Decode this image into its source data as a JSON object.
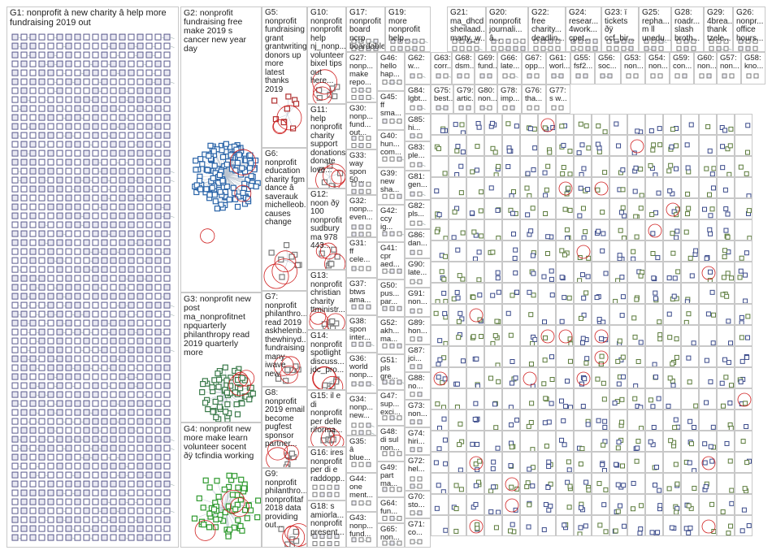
{
  "colors": {
    "G1": "#5a5a8c",
    "G2": "#2a64a8",
    "G3": "#3a7a4a",
    "G4": "#2f9a2f",
    "G5": "#b03030",
    "G6": "#7a7a7a",
    "accent_red": "#d02020",
    "node_dark": "#2b2b55"
  },
  "groups": [
    {
      "id": "G1",
      "label": "G1: nonprofit à new charity â help more\nfundraising 2019 out",
      "color": "#5a5a8c"
    },
    {
      "id": "G2",
      "label": "G2: nonprofit\nfundraising free\nmake 2019 s\ncancer new year\nday",
      "color": "#2a64a8"
    },
    {
      "id": "G3",
      "label": "G3: nonprofit new\npost\nma_nonprofitnet\nnpquarterly\nphilanthropy read\n2019 quarterly\nmore",
      "color": "#3a7a4a"
    },
    {
      "id": "G4",
      "label": "G4: nonprofit new\nmore make learn\nvolunteer socent\nðÿ tcfindia working",
      "color": "#2f9a2f"
    },
    {
      "id": "G5",
      "label": "G5:\nnonprofit\nfundraising\ngrant\ngrantwriting\ndonors up\nmore latest\nthanks 2019",
      "color": "#b03030"
    },
    {
      "id": "G6",
      "label": "G6:\nnonprofit\neducation\ncharity fgm\ndance â\nsaverauk\nmichelleob...\ncauses\nchange",
      "color": "#7a7a7a"
    },
    {
      "id": "G7",
      "label": "G7:\nnonprofit\nphilanthro...\nread 2019\naskhelenb...\nthewhinyd...\nfundraising\nmany iwave\nnew",
      "color": "#7a7a7a"
    },
    {
      "id": "G8",
      "label": "G8:\nnonprofit\n2019 email\nbecome\npugfest\nsponsor\npartner...",
      "color": "#7a7a7a"
    },
    {
      "id": "G9",
      "label": "G9:\nnonprofit\nphilanthro...\nnonprofitaf\n2018 data\nproviding\nout...",
      "color": "#7a7a7a"
    },
    {
      "id": "G10",
      "label": "G10:\nnonprofit\nnonprofit\nhelp\nnj_nonp...\nvolunteer\nbixel tips\nout here...",
      "color": "#7a7a7a"
    },
    {
      "id": "G11",
      "label": "G11: help\nnonprofit\ncharity\nsupport\ndonations\ndonate\nlove...",
      "color": "#7a7a7a"
    },
    {
      "id": "G12",
      "label": "G12:\nnoon ðÿ\n100\nnonprofit\nsudbury\nma 978\n443...",
      "color": "#7a7a7a"
    },
    {
      "id": "G13",
      "label": "G13:\nnonprofit\nchristian\ncharity\nttministr...",
      "color": "#7a7a7a"
    },
    {
      "id": "G14",
      "label": "G14:\nnonprofit\nspotlight\ndiscuss...\njdc_pro...",
      "color": "#7a7a7a"
    },
    {
      "id": "G15",
      "label": "G15: il e\ndi\nnonprofit\nper delle\nriforma...",
      "color": "#7a7a7a"
    },
    {
      "id": "G16",
      "label": "G16: ires\nnonprofit\nper di e\nraddopp...",
      "color": "#7a7a7a"
    },
    {
      "id": "G17",
      "label": "G17:\nnonprofit\nboard ncrp\nboardable...",
      "color": "#7a7a7a"
    },
    {
      "id": "G18",
      "label": "G18: s\namiorla...\nnonprofit\npresent...",
      "color": "#7a7a7a"
    },
    {
      "id": "G19",
      "label": "G19:\nmore\nnonprofit\nhelp...",
      "color": "#7a7a7a"
    },
    {
      "id": "G20",
      "label": "G20:\nnonprofit\njournali...\nâ...",
      "color": "#7a7a7a"
    },
    {
      "id": "G21",
      "label": "G21:\nma_dhcd\nsheilaad...\nmarty_w...",
      "color": "#7a7a7a"
    },
    {
      "id": "G22",
      "label": "G22:\nfree\ncharity...\ndeadlin...",
      "color": "#7a7a7a"
    },
    {
      "id": "G23",
      "label": "G23: ï\ntickets\nðÿ\nccf_bir...",
      "color": "#7a7a7a"
    },
    {
      "id": "G24",
      "label": "G24:\nresear...\n4work...\ncpet...",
      "color": "#7a7a7a"
    },
    {
      "id": "G25",
      "label": "G25:\nrepha...\nm ll\nunedu...",
      "color": "#7a7a7a"
    },
    {
      "id": "G26",
      "label": "G26:\nnonpr...\noffice\nhours...",
      "color": "#7a7a7a"
    },
    {
      "id": "G27",
      "label": "G27:\nnonp...\nmake\nrepo...",
      "color": "#7a7a7a"
    },
    {
      "id": "G28",
      "label": "G28:\nroadr...\nslash\nbroth...",
      "color": "#7a7a7a"
    },
    {
      "id": "G29",
      "label": "G29:\n4brea...\nthank\ntzele...",
      "color": "#7a7a7a"
    },
    {
      "id": "G30",
      "label": "G30:\nnonp...\nfund...\nout...",
      "color": "#7a7a7a"
    },
    {
      "id": "G31",
      "label": "G31:\nff\ncele...",
      "color": "#7a7a7a"
    },
    {
      "id": "G32",
      "label": "G32:\nnonp...\neven...",
      "color": "#7a7a7a"
    },
    {
      "id": "G33",
      "label": "G33:\nway\nspon\n50...",
      "color": "#7a7a7a"
    },
    {
      "id": "G34",
      "label": "G34:\nnonp...\nnew...",
      "color": "#7a7a7a"
    },
    {
      "id": "G35",
      "label": "G35:\nâ\nblue...",
      "color": "#7a7a7a"
    },
    {
      "id": "G36",
      "label": "G36:\nworld\nnonp...",
      "color": "#7a7a7a"
    },
    {
      "id": "G37",
      "label": "G37:\nbtws\nama...",
      "color": "#7a7a7a"
    },
    {
      "id": "G38",
      "label": "G38:\nspon\ninter...",
      "color": "#7a7a7a"
    },
    {
      "id": "G39",
      "label": "G39:\nnew\nsha...",
      "color": "#7a7a7a"
    },
    {
      "id": "G40",
      "label": "G40:\nhun...\ncom...",
      "color": "#7a7a7a"
    },
    {
      "id": "G41",
      "label": "G41:\ncpr\naed...",
      "color": "#7a7a7a"
    },
    {
      "id": "G42",
      "label": "G42:\nccy\nig...",
      "color": "#7a7a7a"
    },
    {
      "id": "G43",
      "label": "G43:\nnonp...\nfund...",
      "color": "#7a7a7a"
    },
    {
      "id": "G44",
      "label": "G44:\none\nment...",
      "color": "#7a7a7a"
    },
    {
      "id": "G45",
      "label": "G45:\nff\nsma...",
      "color": "#7a7a7a"
    },
    {
      "id": "G46",
      "label": "G46:\nhello\nhap...",
      "color": "#7a7a7a"
    },
    {
      "id": "G47",
      "label": "G47:\nsup...\nexci...",
      "color": "#7a7a7a"
    },
    {
      "id": "G48",
      "label": "G48:\ndi sul\nnon...",
      "color": "#7a7a7a"
    },
    {
      "id": "G49",
      "label": "G49:\npart\nma...",
      "color": "#7a7a7a"
    },
    {
      "id": "G50",
      "label": "G50:\npus...\npar...",
      "color": "#7a7a7a"
    },
    {
      "id": "G51",
      "label": "G51:\npls\ngre...",
      "color": "#7a7a7a"
    },
    {
      "id": "G52",
      "label": "G52:\nakh...\nma...",
      "color": "#7a7a7a"
    },
    {
      "id": "G53",
      "label": "G53:\nnon...",
      "color": "#7a7a7a"
    },
    {
      "id": "G54",
      "label": "G54:\nnon...",
      "color": "#7a7a7a"
    },
    {
      "id": "G55",
      "label": "G55:\nfsf2...",
      "color": "#7a7a7a"
    },
    {
      "id": "G56",
      "label": "G56:\nsoc...",
      "color": "#7a7a7a"
    },
    {
      "id": "G57",
      "label": "G57:\nnon...",
      "color": "#7a7a7a"
    },
    {
      "id": "G58",
      "label": "G58:\nkno...",
      "color": "#7a7a7a"
    },
    {
      "id": "G59",
      "label": "G59:\ncon...",
      "color": "#7a7a7a"
    },
    {
      "id": "G60",
      "label": "G60:\nnon...",
      "color": "#7a7a7a"
    },
    {
      "id": "G61",
      "label": "G61:\nworl...",
      "color": "#7a7a7a"
    },
    {
      "id": "G62",
      "label": "G62:\nw...",
      "color": "#7a7a7a"
    },
    {
      "id": "G63",
      "label": "G63:\ncorr...",
      "color": "#7a7a7a"
    },
    {
      "id": "G64",
      "label": "G64:\nfun...",
      "color": "#7a7a7a"
    },
    {
      "id": "G65",
      "label": "G65:\nnon...",
      "color": "#7a7a7a"
    },
    {
      "id": "G66",
      "label": "G66:\nlate...",
      "color": "#7a7a7a"
    },
    {
      "id": "G67",
      "label": "G67:\nopp...",
      "color": "#7a7a7a"
    },
    {
      "id": "G68",
      "label": "G68:\ndsm...",
      "color": "#7a7a7a"
    },
    {
      "id": "G69",
      "label": "G69:\nfund...",
      "color": "#7a7a7a"
    },
    {
      "id": "G70",
      "label": "G70:\nsto...",
      "color": "#7a7a7a"
    },
    {
      "id": "G71",
      "label": "G71:\nco...",
      "color": "#7a7a7a"
    },
    {
      "id": "G72",
      "label": "G72:\nhel...",
      "color": "#7a7a7a"
    },
    {
      "id": "G73",
      "label": "G73:\nnon...",
      "color": "#7a7a7a"
    },
    {
      "id": "G74",
      "label": "G74:\nhiri...",
      "color": "#7a7a7a"
    },
    {
      "id": "G75",
      "label": "G75:\nbest...",
      "color": "#7a7a7a"
    },
    {
      "id": "G76",
      "label": "G76:\ntha...",
      "color": "#7a7a7a"
    },
    {
      "id": "G77",
      "label": "G77:\ns w...",
      "color": "#7a7a7a"
    },
    {
      "id": "G78",
      "label": "G78:\nimp...",
      "color": "#7a7a7a"
    },
    {
      "id": "G79",
      "label": "G79:\nartic...",
      "color": "#7a7a7a"
    },
    {
      "id": "G80",
      "label": "G80:\nnon...",
      "color": "#7a7a7a"
    },
    {
      "id": "G81",
      "label": "G81:\ngen...",
      "color": "#7a7a7a"
    },
    {
      "id": "G82",
      "label": "G82:\npls...",
      "color": "#7a7a7a"
    },
    {
      "id": "G83",
      "label": "G83:\nple...",
      "color": "#7a7a7a"
    },
    {
      "id": "G84",
      "label": "G84:\nlgbt...",
      "color": "#7a7a7a"
    },
    {
      "id": "G85",
      "label": "G85:\nhi...",
      "color": "#7a7a7a"
    },
    {
      "id": "G86",
      "label": "G86:\ndan...",
      "color": "#7a7a7a"
    },
    {
      "id": "G87",
      "label": "G87:\njci...",
      "color": "#7a7a7a"
    },
    {
      "id": "G88",
      "label": "G88:\nno...",
      "color": "#7a7a7a"
    },
    {
      "id": "G89",
      "label": "G89:\nhon...",
      "color": "#7a7a7a"
    },
    {
      "id": "G90",
      "label": "G90:\nlate...",
      "color": "#7a7a7a"
    },
    {
      "id": "G91",
      "label": "G91:\nnon...",
      "color": "#7a7a7a"
    }
  ]
}
